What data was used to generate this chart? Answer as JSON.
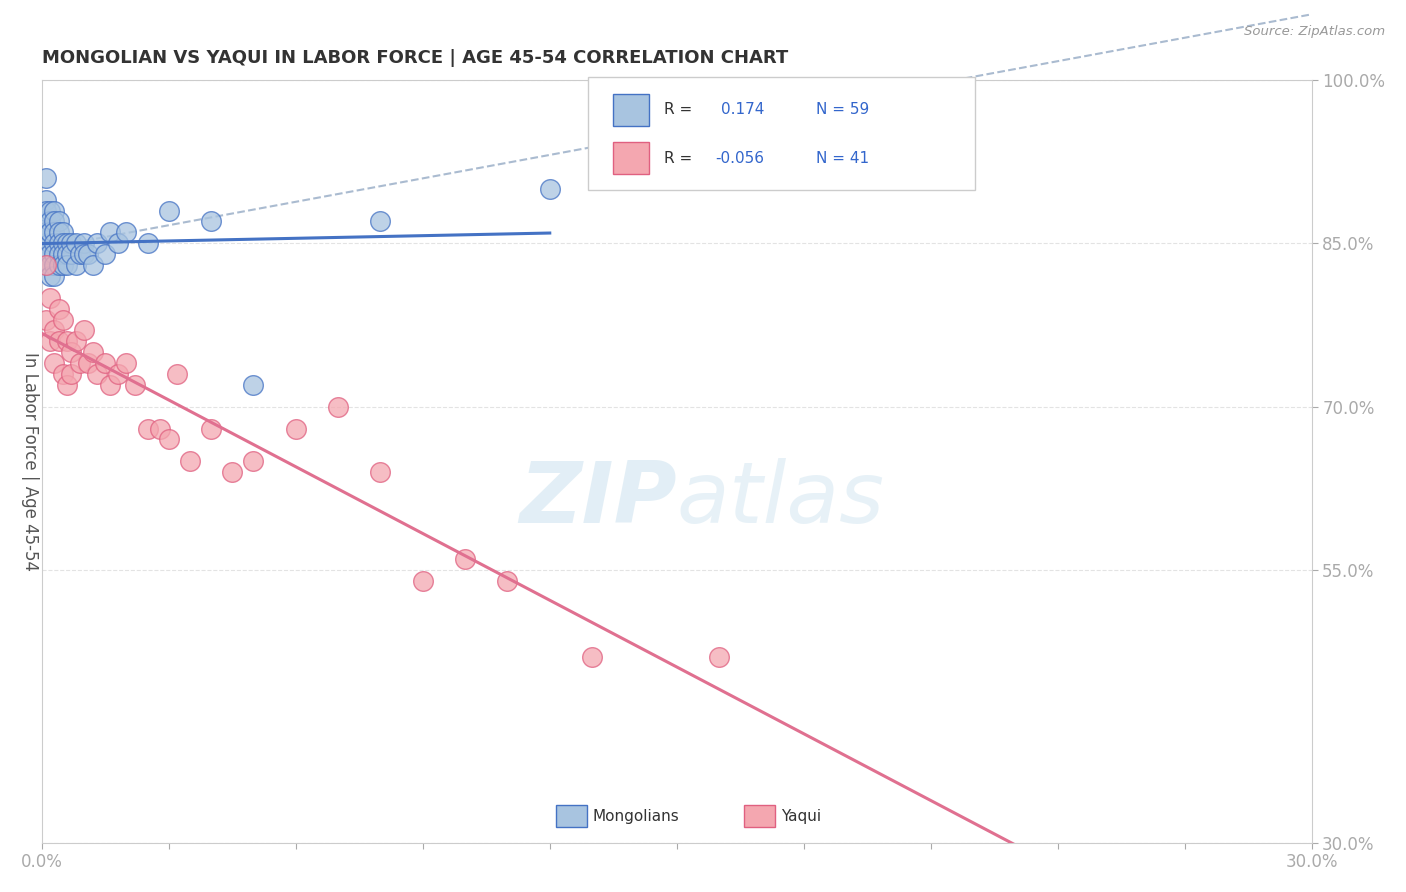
{
  "title": "MONGOLIAN VS YAQUI IN LABOR FORCE | AGE 45-54 CORRELATION CHART",
  "source": "Source: ZipAtlas.com",
  "ylabel": "In Labor Force | Age 45-54",
  "xlim": [
    0.0,
    0.3
  ],
  "ylim": [
    0.3,
    1.0
  ],
  "xticks": [
    0.0,
    0.03,
    0.06,
    0.09,
    0.12,
    0.15,
    0.18,
    0.21,
    0.24,
    0.27,
    0.3
  ],
  "xticklabels_show": {
    "0.0": "0.0%",
    "0.30": "30.0%"
  },
  "yticks_right": [
    0.3,
    0.55,
    0.7,
    0.85,
    1.0
  ],
  "yticklabels_right": [
    "30.0%",
    "55.0%",
    "70.0%",
    "85.0%",
    "100.0%"
  ],
  "mongolian_R": 0.174,
  "mongolian_N": 59,
  "yaqui_R": -0.056,
  "yaqui_N": 41,
  "blue_fill": "#A8C4E0",
  "blue_edge": "#4472C4",
  "pink_fill": "#F4A7B0",
  "pink_edge": "#E06080",
  "blue_line": "#4472C4",
  "pink_line": "#E07090",
  "dash_color": "#AABBD0",
  "legend_blue_fill": "#A8C4E0",
  "legend_pink_fill": "#F4A7B0",
  "background_color": "#FFFFFF",
  "grid_color": "#DDDDDD",
  "title_color": "#333333",
  "tick_color": "#4499CC",
  "watermark_color": "#D0E4F0",
  "mongolian_x": [
    0.001,
    0.001,
    0.001,
    0.001,
    0.001,
    0.001,
    0.001,
    0.001,
    0.001,
    0.001,
    0.001,
    0.001,
    0.002,
    0.002,
    0.002,
    0.002,
    0.002,
    0.002,
    0.002,
    0.002,
    0.003,
    0.003,
    0.003,
    0.003,
    0.003,
    0.003,
    0.003,
    0.004,
    0.004,
    0.004,
    0.004,
    0.004,
    0.005,
    0.005,
    0.005,
    0.005,
    0.006,
    0.006,
    0.006,
    0.007,
    0.007,
    0.008,
    0.008,
    0.009,
    0.01,
    0.01,
    0.011,
    0.012,
    0.013,
    0.015,
    0.016,
    0.018,
    0.02,
    0.025,
    0.03,
    0.04,
    0.05,
    0.08,
    0.12
  ],
  "mongolian_y": [
    0.91,
    0.89,
    0.87,
    0.86,
    0.85,
    0.84,
    0.87,
    0.88,
    0.86,
    0.85,
    0.84,
    0.83,
    0.88,
    0.86,
    0.85,
    0.84,
    0.83,
    0.82,
    0.87,
    0.86,
    0.88,
    0.87,
    0.86,
    0.85,
    0.84,
    0.83,
    0.82,
    0.87,
    0.86,
    0.85,
    0.84,
    0.83,
    0.86,
    0.85,
    0.84,
    0.83,
    0.85,
    0.84,
    0.83,
    0.85,
    0.84,
    0.85,
    0.83,
    0.84,
    0.85,
    0.84,
    0.84,
    0.83,
    0.85,
    0.84,
    0.86,
    0.85,
    0.86,
    0.85,
    0.88,
    0.87,
    0.72,
    0.87,
    0.9
  ],
  "yaqui_x": [
    0.001,
    0.001,
    0.002,
    0.002,
    0.003,
    0.003,
    0.004,
    0.004,
    0.005,
    0.005,
    0.006,
    0.006,
    0.007,
    0.007,
    0.008,
    0.009,
    0.01,
    0.011,
    0.012,
    0.013,
    0.015,
    0.016,
    0.018,
    0.02,
    0.022,
    0.025,
    0.028,
    0.03,
    0.032,
    0.035,
    0.04,
    0.045,
    0.05,
    0.06,
    0.07,
    0.08,
    0.09,
    0.1,
    0.11,
    0.13,
    0.16
  ],
  "yaqui_y": [
    0.83,
    0.78,
    0.8,
    0.76,
    0.77,
    0.74,
    0.79,
    0.76,
    0.78,
    0.73,
    0.76,
    0.72,
    0.75,
    0.73,
    0.76,
    0.74,
    0.77,
    0.74,
    0.75,
    0.73,
    0.74,
    0.72,
    0.73,
    0.74,
    0.72,
    0.68,
    0.68,
    0.67,
    0.73,
    0.65,
    0.68,
    0.64,
    0.65,
    0.68,
    0.7,
    0.64,
    0.54,
    0.56,
    0.54,
    0.47,
    0.47
  ]
}
